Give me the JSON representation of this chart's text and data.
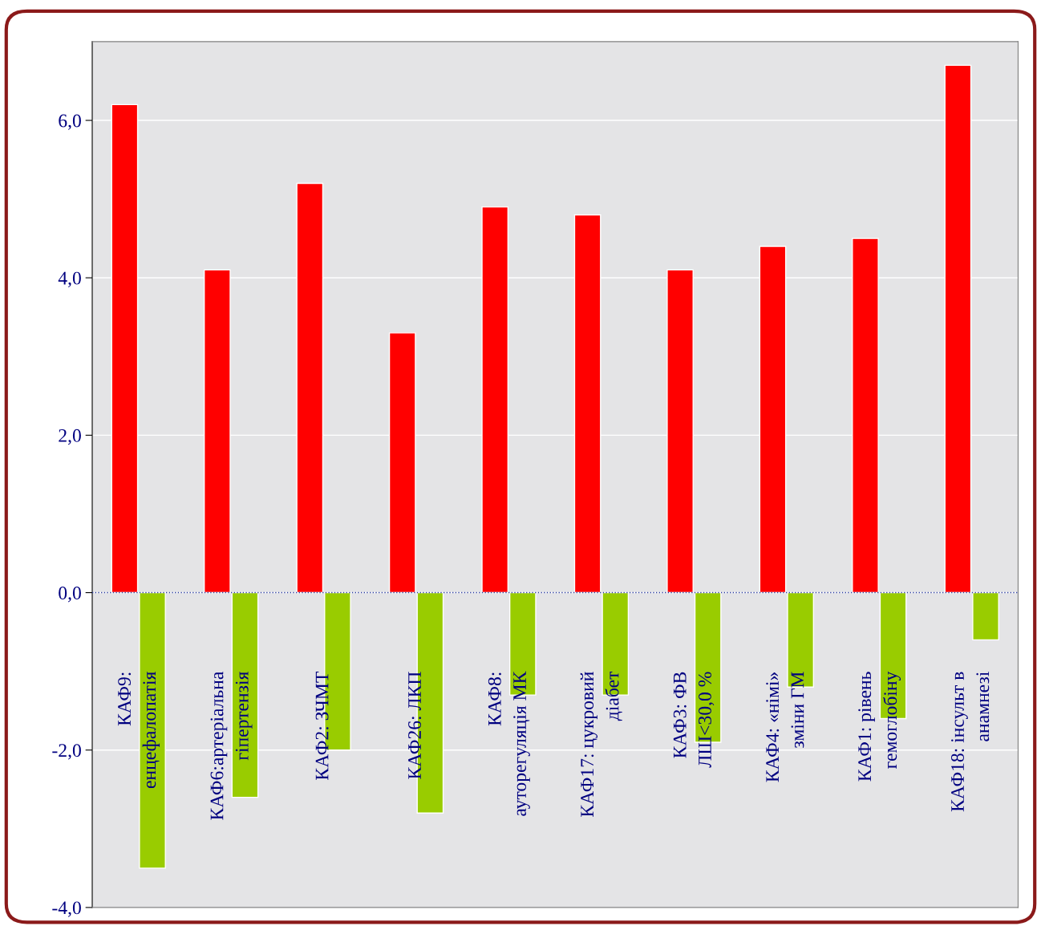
{
  "chart_data": {
    "type": "bar",
    "categories": [
      "КАФ9:\nенцефалопатія",
      "КАФ6:артеріальна\nгіпертензія",
      "КАФ2: ЗЧМТ",
      "КАФ26: ЛКП",
      "КАФ8:\nауторегуляція МК",
      "КАФ17: цукровий\nдіабет",
      "КАФ3: ФВ\nЛШ<30,0 %",
      "КАФ4: «німі»\nзміни ГМ",
      "КАФ1: рівень\nгемоглобіну",
      "КАФ18: інсульт в\nанамнезі"
    ],
    "series": [
      {
        "color": "#ff0000",
        "values": [
          6.2,
          4.1,
          5.2,
          3.3,
          4.9,
          4.8,
          4.1,
          4.4,
          4.5,
          6.7
        ]
      },
      {
        "color": "#99cc00",
        "values": [
          -3.5,
          -2.6,
          -2.0,
          -2.8,
          -1.3,
          -1.3,
          -1.9,
          -1.2,
          -1.6,
          -0.6
        ]
      }
    ],
    "ylim": [
      -4,
      7
    ],
    "yticks": [
      {
        "value": -4,
        "label": "-4,0"
      },
      {
        "value": -2,
        "label": "-2,0"
      },
      {
        "value": 0,
        "label": "0,0"
      },
      {
        "value": 2,
        "label": "2,0"
      },
      {
        "value": 4,
        "label": "4,0"
      },
      {
        "value": 6,
        "label": "6,0"
      }
    ],
    "ref_lines": [
      {
        "axis": "y",
        "value": 0,
        "color": "#3040a0",
        "line_style": "dotted"
      }
    ],
    "grid": "y",
    "legend": false
  }
}
